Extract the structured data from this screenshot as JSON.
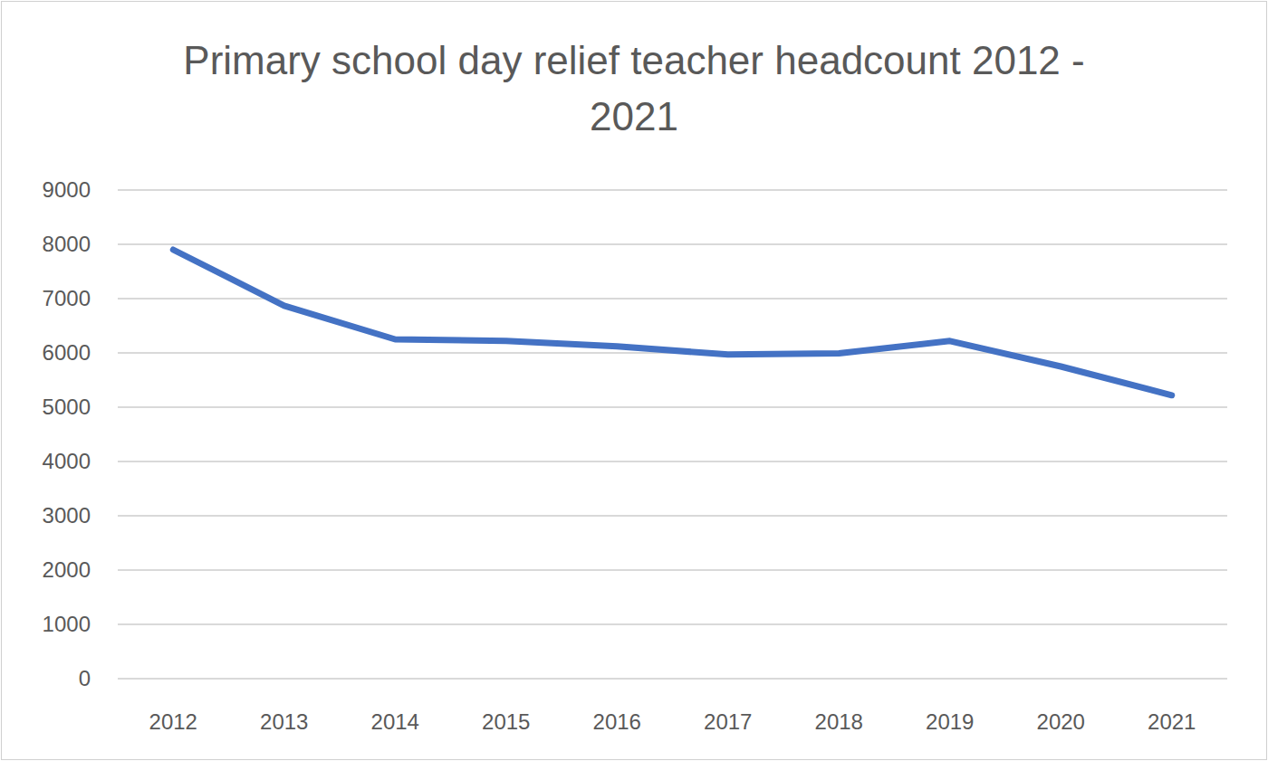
{
  "chart_data": {
    "type": "line",
    "title": "Primary school day relief teacher headcount 2012 - 2021",
    "categories": [
      "2012",
      "2013",
      "2014",
      "2015",
      "2016",
      "2017",
      "2018",
      "2019",
      "2020",
      "2021"
    ],
    "values": [
      7900,
      6870,
      6250,
      6220,
      6120,
      5970,
      5990,
      6220,
      5750,
      5220
    ],
    "color": "#4472c4",
    "ylim": [
      0,
      9000
    ],
    "yticks": [
      0,
      1000,
      2000,
      3000,
      4000,
      5000,
      6000,
      7000,
      8000,
      9000
    ],
    "grid": true
  }
}
